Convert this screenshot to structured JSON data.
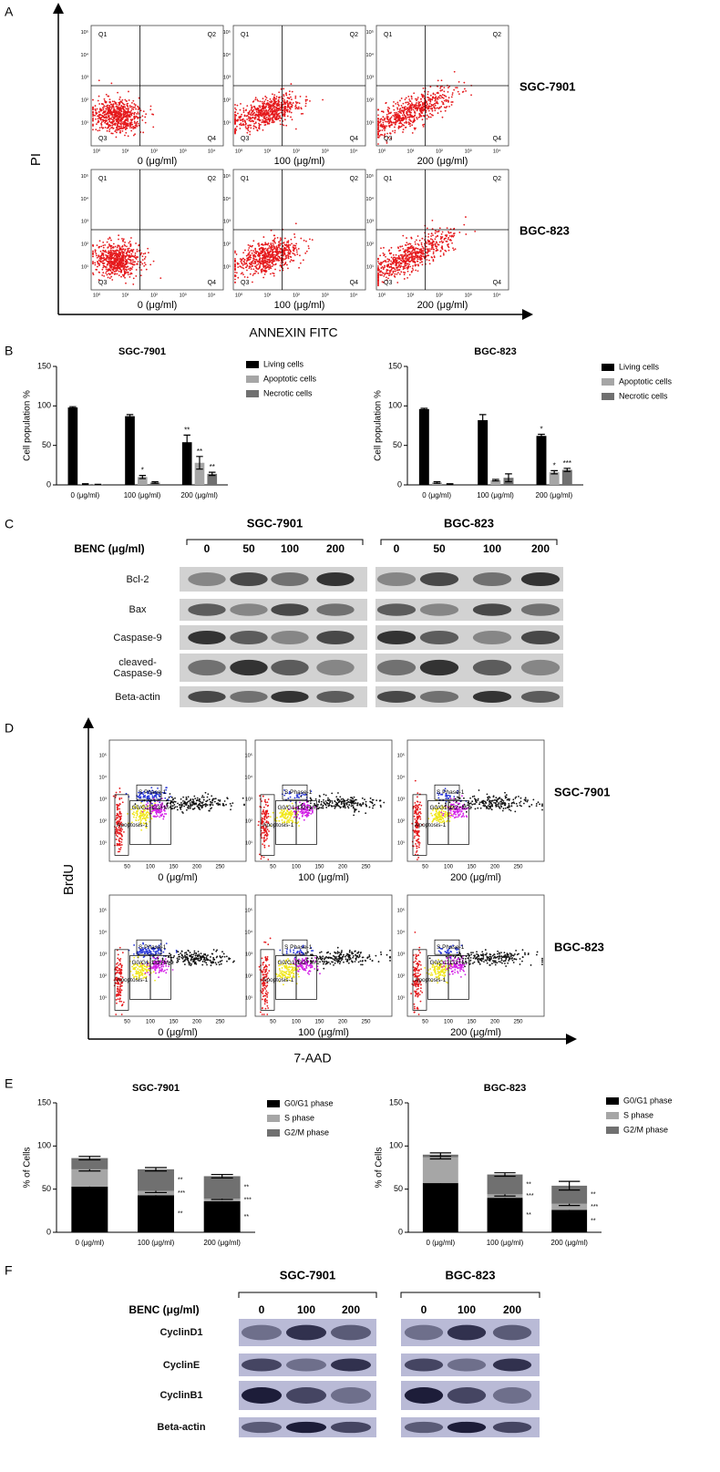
{
  "panel_labels": [
    "A",
    "B",
    "C",
    "D",
    "E",
    "F"
  ],
  "panel_a": {
    "y_axis": "PI",
    "x_axis": "ANNEXIN FITC",
    "quadrants": [
      "Q1",
      "Q2",
      "Q3",
      "Q4"
    ],
    "doses": [
      "0 (μg/ml)",
      "100 (μg/ml)",
      "200 (μg/ml)"
    ],
    "cell_lines": [
      "SGC-7901",
      "BGC-823"
    ],
    "axis_ticks": [
      "10⁰",
      "10¹",
      "10²",
      "10³",
      "10⁴",
      "10⁵"
    ]
  },
  "panel_c": {
    "treatment": "BENC (μg/ml)",
    "cell_lines": [
      "SGC-7901",
      "BGC-823"
    ],
    "lanes": [
      "0",
      "50",
      "100",
      "200"
    ],
    "proteins": [
      "Bcl-2",
      "Bax",
      "Caspase-9",
      "cleaved-Caspase-9",
      "Beta-actin"
    ]
  },
  "panel_d": {
    "y_axis": "BrdU",
    "x_axis": "7-AAD",
    "gates": [
      "S Phase-1",
      "G0/G1-1",
      "G2+M-1",
      "Apoptosis-1"
    ],
    "doses": [
      "0 (μg/ml)",
      "100 (μg/ml)",
      "200 (μg/ml)"
    ],
    "cell_lines": [
      "SGC-7901",
      "BGC-823"
    ],
    "x_ticks": [
      "50",
      "100",
      "150",
      "200",
      "250"
    ],
    "y_ticks": [
      "10¹",
      "10²",
      "10³",
      "10⁴",
      "10⁵"
    ]
  },
  "panel_f": {
    "treatment": "BENC (μg/ml)",
    "cell_lines": [
      "SGC-7901",
      "BGC-823"
    ],
    "lanes": [
      "0",
      "100",
      "200"
    ],
    "proteins": [
      "CyclinD1",
      "CyclinE",
      "CyclinB1",
      "Beta-actin"
    ]
  },
  "chart_data": [
    {
      "type": "bar",
      "title": "SGC-7901",
      "ylabel": "Cell population %",
      "categories": [
        "0 (μg/ml)",
        "100 (μg/ml)",
        "200 (μg/ml)"
      ],
      "ylim": [
        0,
        150
      ],
      "yticks": [
        0,
        50,
        100,
        150
      ],
      "series": [
        {
          "name": "Living cells",
          "color": "#000000",
          "values": [
            98,
            87,
            54
          ],
          "errors": [
            1,
            2,
            9
          ],
          "significance": [
            null,
            null,
            "**"
          ]
        },
        {
          "name": "Apoptotic cells",
          "color": "#a6a6a6",
          "values": [
            1,
            10,
            28
          ],
          "errors": [
            0.5,
            2,
            8
          ],
          "significance": [
            null,
            "*",
            "**"
          ]
        },
        {
          "name": "Necrotic cells",
          "color": "#707070",
          "values": [
            0.5,
            3,
            14
          ],
          "errors": [
            0.3,
            1,
            2
          ],
          "significance": [
            null,
            null,
            "**"
          ]
        }
      ]
    },
    {
      "type": "bar",
      "title": "BGC-823",
      "ylabel": "Cell population %",
      "categories": [
        "0 (μg/ml)",
        "100 (μg/ml)",
        "200 (μg/ml)"
      ],
      "ylim": [
        0,
        150
      ],
      "yticks": [
        0,
        50,
        100,
        150
      ],
      "series": [
        {
          "name": "Living cells",
          "color": "#000000",
          "values": [
            96,
            82,
            62
          ],
          "errors": [
            1,
            7,
            2
          ],
          "significance": [
            null,
            null,
            "*"
          ]
        },
        {
          "name": "Apoptotic cells",
          "color": "#a6a6a6",
          "values": [
            3,
            6,
            16
          ],
          "errors": [
            1,
            1,
            2
          ],
          "significance": [
            null,
            null,
            "*"
          ]
        },
        {
          "name": "Necrotic cells",
          "color": "#707070",
          "values": [
            1,
            9,
            19
          ],
          "errors": [
            0.5,
            5,
            2
          ],
          "significance": [
            null,
            null,
            "***"
          ]
        }
      ]
    },
    {
      "type": "stacked_bar",
      "title": "SGC-7901",
      "ylabel": "% of Cells",
      "categories": [
        "0 (μg/ml)",
        "100 (μg/ml)",
        "200 (μg/ml)"
      ],
      "ylim": [
        0,
        150
      ],
      "yticks": [
        0,
        50,
        100,
        150
      ],
      "series": [
        {
          "name": "G0/G1 phase",
          "color": "#000000",
          "values": [
            53,
            43,
            36
          ],
          "errors": [
            3,
            2,
            2
          ],
          "significance": [
            null,
            "**",
            "**"
          ]
        },
        {
          "name": "S phase",
          "color": "#a6a6a6",
          "values": [
            20,
            5,
            3
          ],
          "errors": [
            2,
            2,
            1
          ],
          "significance": [
            null,
            "***",
            "***"
          ]
        },
        {
          "name": "G2/M phase",
          "color": "#707070",
          "values": [
            13,
            25,
            26
          ],
          "errors": [
            2,
            2,
            2
          ],
          "significance": [
            null,
            "**",
            "**"
          ]
        }
      ]
    },
    {
      "type": "stacked_bar",
      "title": "BGC-823",
      "ylabel": "% of Cells",
      "categories": [
        "0 (μg/ml)",
        "100 (μg/ml)",
        "200 (μg/ml)"
      ],
      "ylim": [
        0,
        150
      ],
      "yticks": [
        0,
        50,
        100,
        150
      ],
      "series": [
        {
          "name": "G0/G1 phase",
          "color": "#000000",
          "values": [
            57,
            40,
            26
          ],
          "errors": [
            2,
            3,
            6
          ],
          "significance": [
            null,
            "**",
            "**"
          ]
        },
        {
          "name": "S phase",
          "color": "#a6a6a6",
          "values": [
            30,
            4,
            7
          ],
          "errors": [
            2,
            2,
            2
          ],
          "significance": [
            null,
            "***",
            "***"
          ]
        },
        {
          "name": "G2/M phase",
          "color": "#707070",
          "values": [
            3,
            23,
            21
          ],
          "errors": [
            2,
            2,
            5
          ],
          "significance": [
            null,
            "**",
            "**"
          ]
        }
      ]
    }
  ]
}
